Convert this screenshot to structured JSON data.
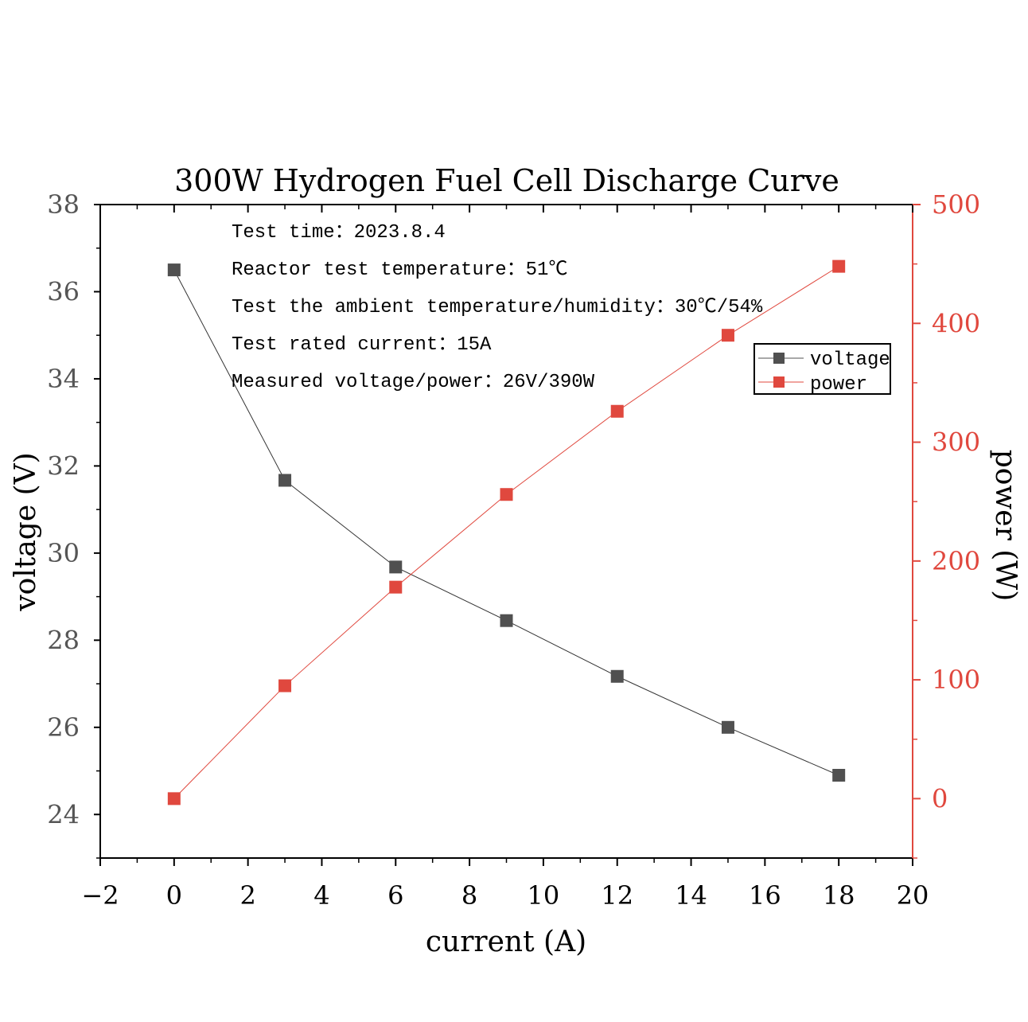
{
  "chart_data": {
    "type": "line",
    "title": "300W Hydrogen Fuel Cell Discharge Curve",
    "xlabel": "current (A)",
    "ylabel_left": "voltage (V)",
    "ylabel_right": "power (W)",
    "xlim": [
      -2,
      20
    ],
    "ylim_left": [
      23,
      38
    ],
    "ylim_right": [
      -50,
      500
    ],
    "x_ticks": [
      "-2",
      "0",
      "2",
      "4",
      "6",
      "8",
      "10",
      "12",
      "14",
      "16",
      "18",
      "20"
    ],
    "y_left_ticks": [
      "24",
      "26",
      "28",
      "30",
      "32",
      "34",
      "36",
      "38"
    ],
    "y_right_ticks": [
      "0",
      "100",
      "200",
      "300",
      "400",
      "500"
    ],
    "grid": false,
    "legend_position": "top-right",
    "series": [
      {
        "name": "voltage",
        "axis": "left",
        "color": "#505050",
        "x": [
          0,
          3,
          6,
          9,
          12,
          15,
          18
        ],
        "values": [
          36.5,
          31.67,
          29.68,
          28.45,
          27.17,
          26.0,
          24.9
        ]
      },
      {
        "name": "power",
        "axis": "right",
        "color": "#e0483e",
        "x": [
          0,
          3,
          6,
          9,
          12,
          15,
          18
        ],
        "values": [
          0,
          95,
          178,
          256,
          326,
          390,
          448
        ]
      }
    ],
    "annotations": [
      "Test time：2023.8.4",
      "Reactor test temperature：51℃",
      "Test the ambient temperature/humidity：30℃/54%",
      "Test rated current：15A",
      "Measured voltage/power：26V/390W"
    ]
  },
  "colors": {
    "axis_left": "#000000",
    "axis_right": "#e0483e",
    "tick_label_left": "#555555",
    "tick_label_right": "#e0483e"
  }
}
